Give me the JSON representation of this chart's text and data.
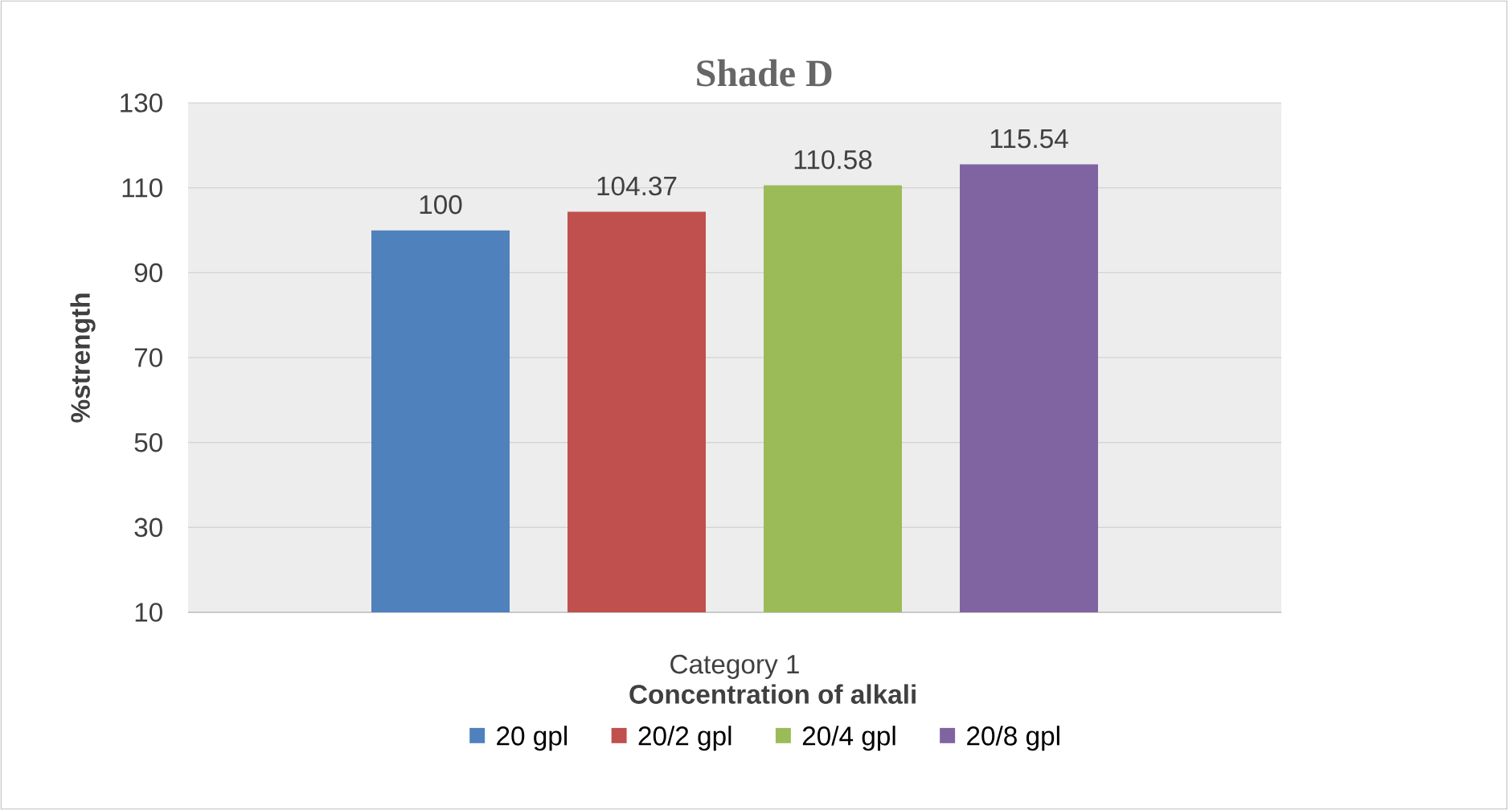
{
  "chart_data": {
    "type": "bar",
    "title": "Shade D",
    "xlabel": "Concentration of alkali",
    "ylabel": "%strength",
    "categories": [
      "Category 1"
    ],
    "series": [
      {
        "name": "20 gpl",
        "color": "#4f81bd",
        "values": [
          100
        ]
      },
      {
        "name": "20/2 gpl",
        "color": "#c0504d",
        "values": [
          104.37
        ]
      },
      {
        "name": "20/4 gpl",
        "color": "#9bbb59",
        "values": [
          110.58
        ]
      },
      {
        "name": "20/8 gpl",
        "color": "#8064a2",
        "values": [
          115.54
        ]
      }
    ],
    "ylim": [
      10,
      130
    ],
    "yticks": [
      10,
      30,
      50,
      70,
      90,
      110,
      130
    ],
    "grid": "y",
    "legend": "bottom",
    "data_labels": true
  }
}
